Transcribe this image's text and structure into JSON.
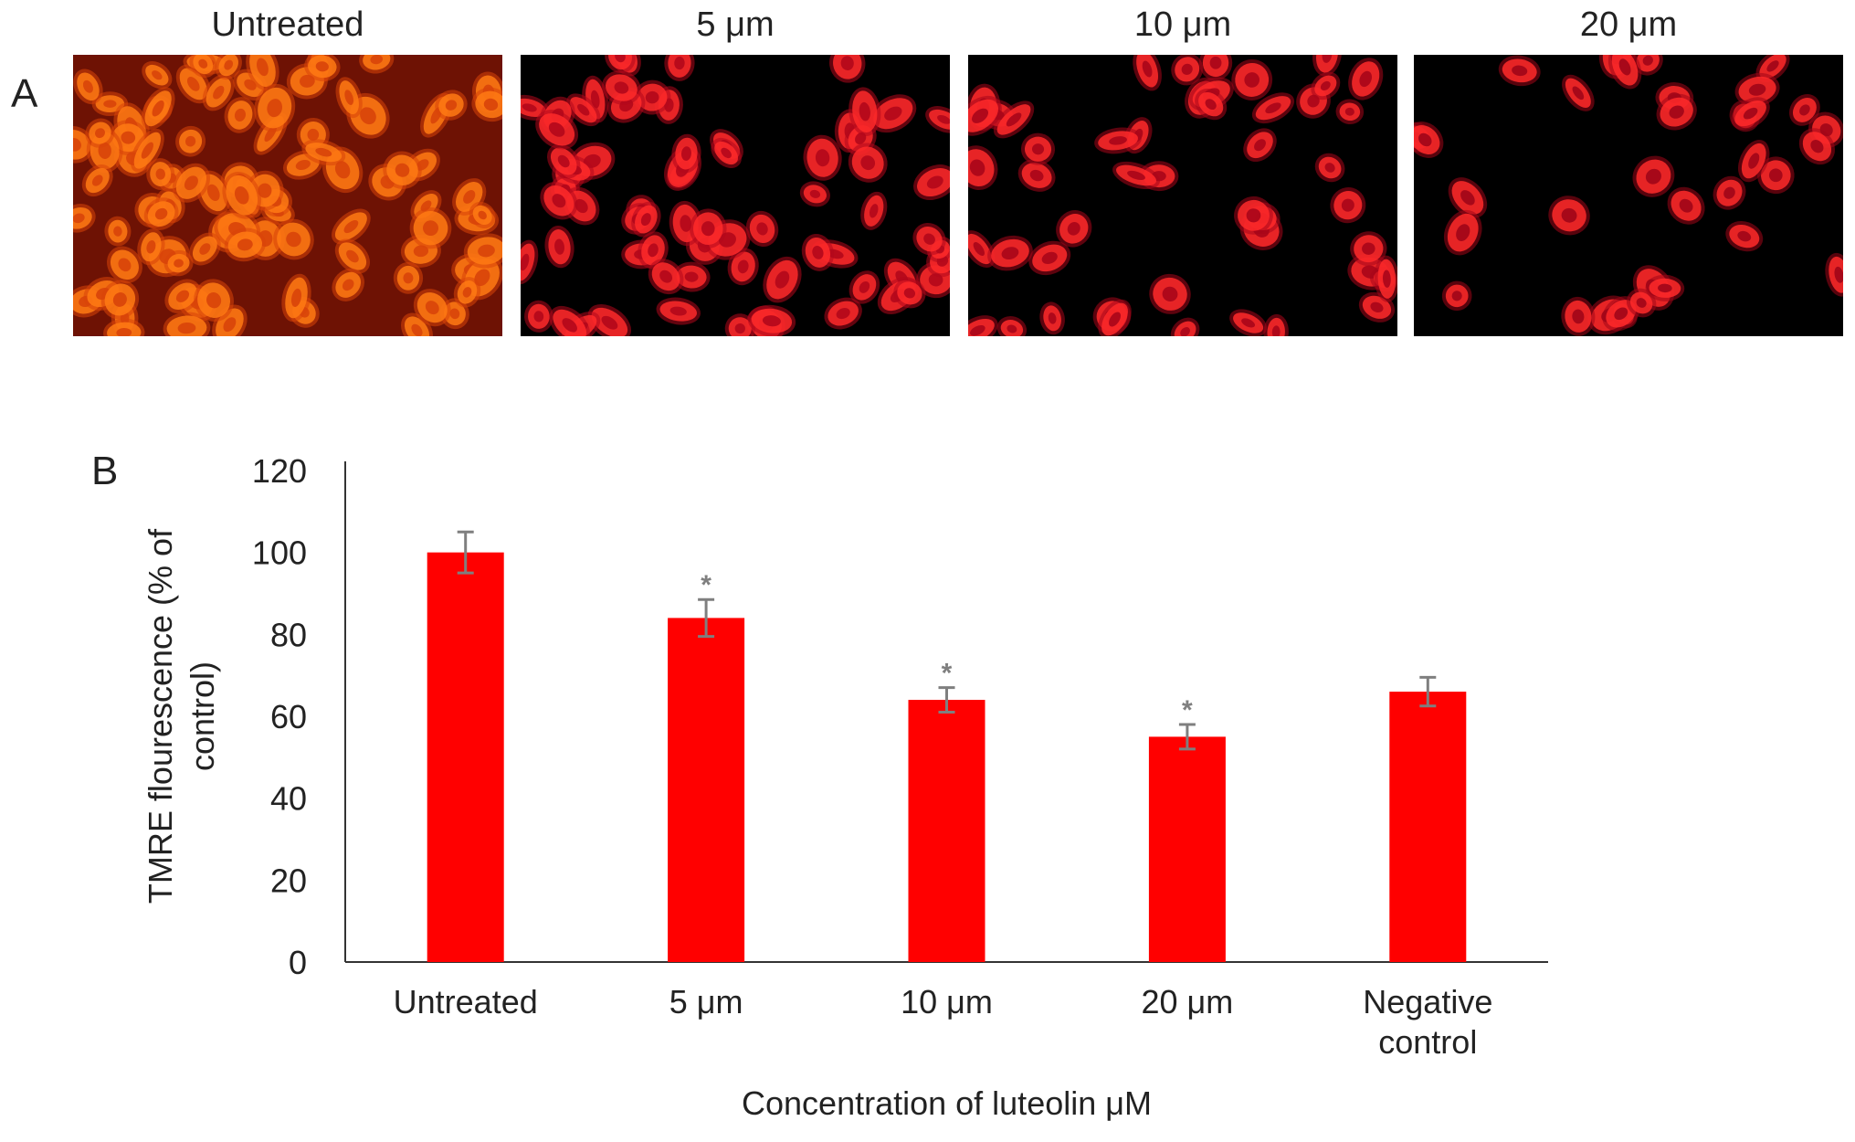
{
  "panel_a": {
    "letter": "A",
    "images": [
      {
        "label": "Untreated",
        "bg": "#6e1204",
        "cell": "#ff7a14",
        "halo": "#d8440a",
        "count": 95
      },
      {
        "label": "5 μm",
        "bg": "#000000",
        "cell": "#ff2a2a",
        "halo": "#b3081b",
        "count": 70
      },
      {
        "label": "10 μm",
        "bg": "#000000",
        "cell": "#ff2a2a",
        "halo": "#a8061a",
        "count": 48
      },
      {
        "label": "20 μm",
        "bg": "#000000",
        "cell": "#ff2a2a",
        "halo": "#a00618",
        "count": 34
      }
    ]
  },
  "chart_data": {
    "panel_letter": "B",
    "type": "bar",
    "categories": [
      "Untreated",
      "5 μm",
      "10 μm",
      "20 μm",
      "Negative control"
    ],
    "values": [
      100,
      84,
      64,
      55,
      66
    ],
    "errors": [
      5,
      4.5,
      3,
      3,
      3.5
    ],
    "significant": [
      false,
      true,
      true,
      true,
      false
    ],
    "significance_marker": "*",
    "ylabel": "TMRE flourescence (% of control)",
    "xlabel": "Concentration of luteolin μM",
    "ylim": [
      0,
      120
    ],
    "yticks": [
      0,
      20,
      40,
      60,
      80,
      100,
      120
    ],
    "bar_color": "#ff0000",
    "error_color": "#7f7f7f",
    "grid": false,
    "legend": "none"
  }
}
